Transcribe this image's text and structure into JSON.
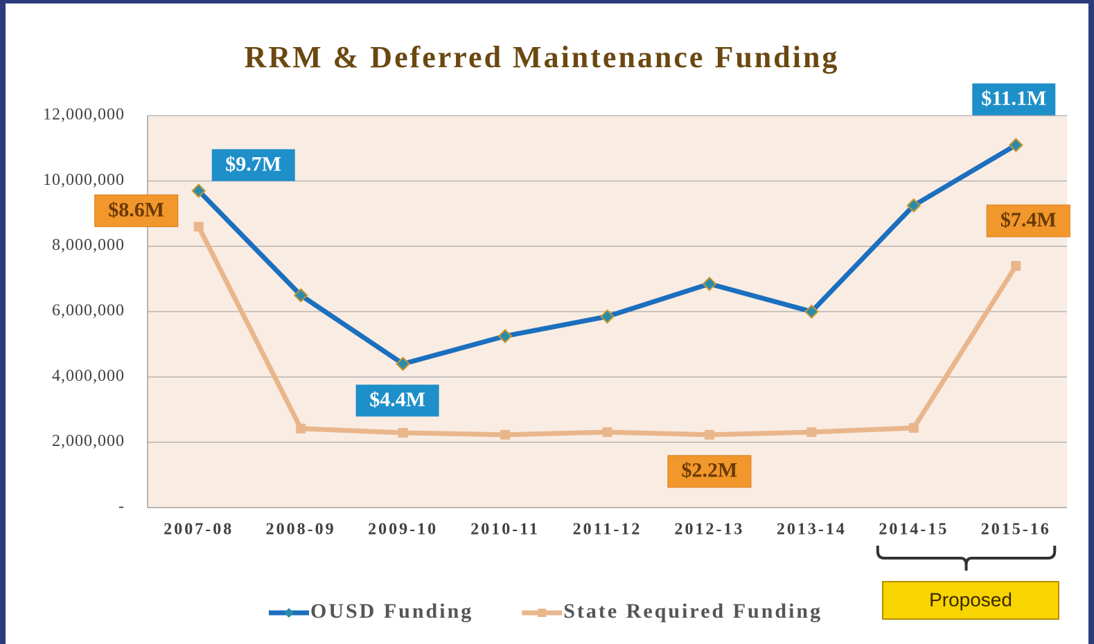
{
  "chart_data": {
    "type": "line",
    "title": "RRM & Deferred Maintenance Funding",
    "categories": [
      "2007-08",
      "2008-09",
      "2009-10",
      "2010-11",
      "2011-12",
      "2012-13",
      "2013-14",
      "2014-15",
      "2015-16"
    ],
    "series": [
      {
        "name": "OUSD Funding",
        "color": "#1b6fbe",
        "marker_color": "#2a8cab",
        "values": [
          9700000,
          6500000,
          4400000,
          5250000,
          5850000,
          6850000,
          6000000,
          9250000,
          11100000
        ],
        "value_labels": [
          "$9.7M",
          null,
          "$4.4M",
          null,
          null,
          null,
          null,
          null,
          "$11.1M"
        ],
        "label_color": "#1e8fc9"
      },
      {
        "name": "State Required Funding",
        "color": "#e9b68c",
        "marker_color": "#e9b68c",
        "values": [
          8600000,
          2420000,
          2290000,
          2230000,
          2310000,
          2230000,
          2310000,
          2440000,
          7400000
        ],
        "value_labels": [
          "$8.6M",
          null,
          null,
          null,
          null,
          "$2.2M",
          null,
          null,
          "$7.4M"
        ],
        "label_color": "#f2972b"
      }
    ],
    "ylim": [
      0,
      12000000
    ],
    "yticks": [
      {
        "value": 0,
        "label": "-"
      },
      {
        "value": 2000000,
        "label": "2,000,000"
      },
      {
        "value": 4000000,
        "label": "4,000,000"
      },
      {
        "value": 6000000,
        "label": "6,000,000"
      },
      {
        "value": 8000000,
        "label": "8,000,000"
      },
      {
        "value": 10000000,
        "label": "10,000,000"
      },
      {
        "value": 12000000,
        "label": "12,000,000"
      }
    ],
    "grid": true,
    "legend": "bottom",
    "annotations": [
      {
        "text": "Proposed",
        "categories": [
          7,
          8
        ]
      }
    ]
  }
}
